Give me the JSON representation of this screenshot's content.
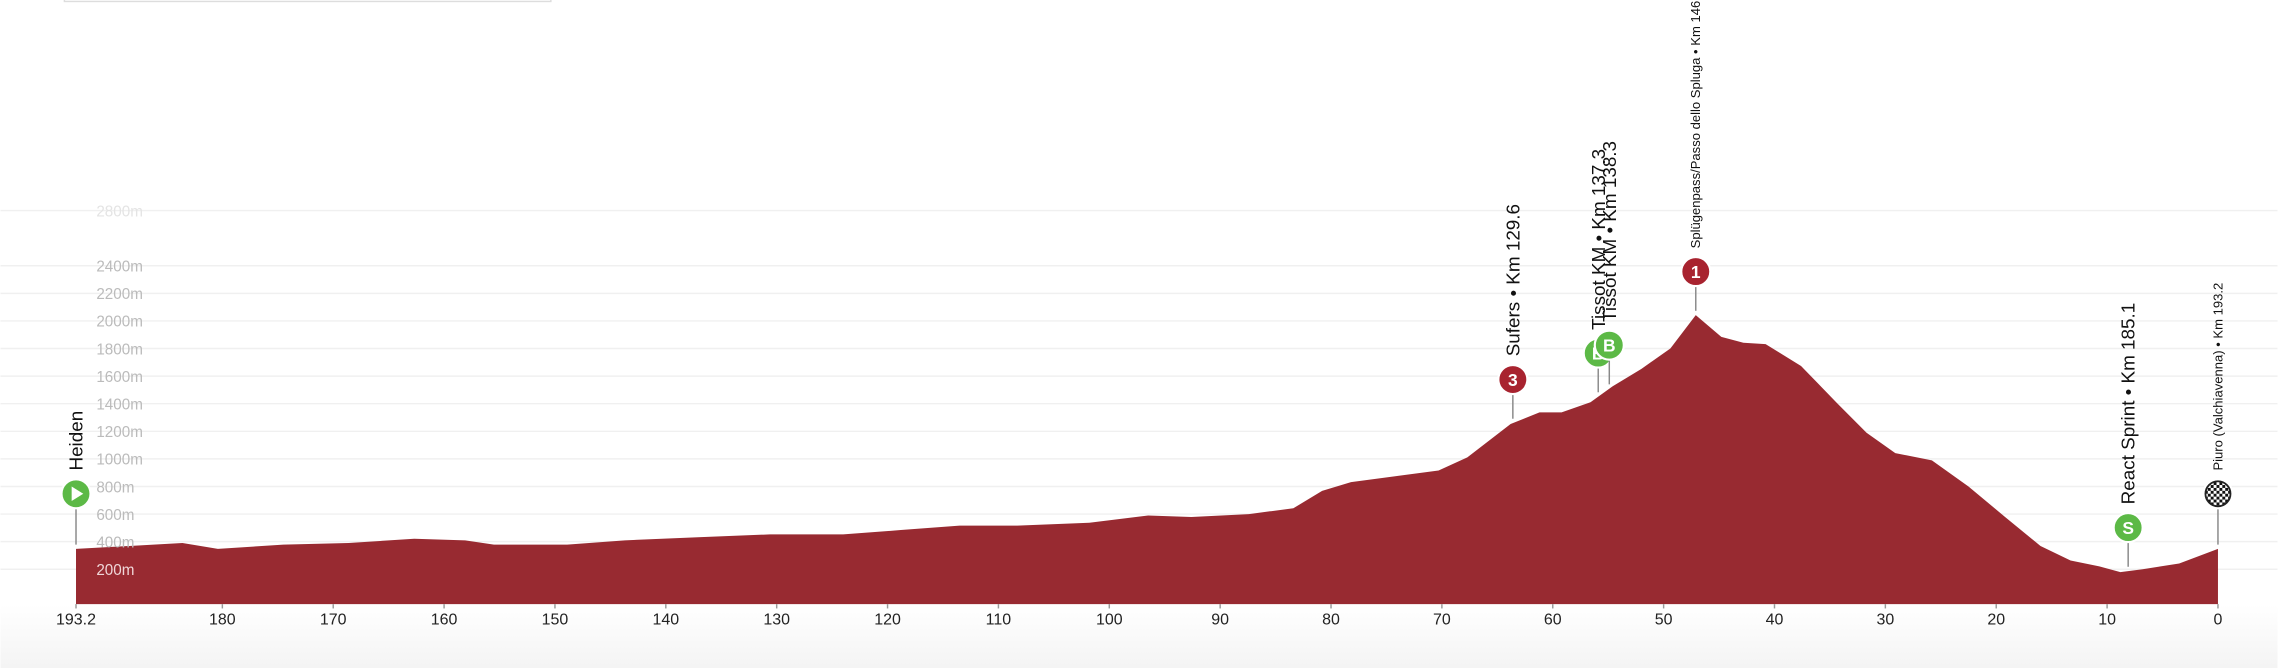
{
  "chart_data": {
    "type": "area",
    "color": "#982a31",
    "grid": true,
    "x": [
      193.2,
      183.6,
      180.4,
      174.5,
      168.6,
      162.7,
      158.1,
      155.5,
      148.9,
      143.7,
      137.1,
      130.6,
      124.0,
      118.8,
      113.5,
      108.3,
      101.8,
      96.5,
      92.6,
      87.4,
      83.4,
      80.8,
      78.2,
      74.3,
      70.3,
      67.7,
      63.8,
      61.2,
      59.2,
      56.6,
      54.6,
      52.0,
      49.4,
      47.1,
      44.8,
      42.8,
      40.8,
      37.6,
      34.3,
      31.7,
      29.1,
      25.8,
      22.5,
      19.2,
      16.0,
      13.3,
      10.7,
      8.8,
      6.8,
      3.5,
      0
    ],
    "values": [
      347,
      390,
      347,
      379,
      390,
      421,
      410,
      379,
      379,
      410,
      432,
      453,
      453,
      484,
      516,
      516,
      537,
      589,
      579,
      600,
      642,
      768,
      832,
      874,
      916,
      1011,
      1253,
      1337,
      1337,
      1411,
      1526,
      1653,
      1800,
      2042,
      1884,
      1842,
      1832,
      1674,
      1400,
      1189,
      1042,
      989,
      800,
      579,
      368,
      263,
      221,
      179,
      200,
      242,
      347
    ],
    "xlim": [
      193.2,
      0
    ],
    "xticks": [
      193.2,
      180,
      170,
      160,
      150,
      140,
      130,
      120,
      110,
      100,
      90,
      80,
      70,
      60,
      50,
      40,
      30,
      20,
      10,
      0
    ],
    "ylim": [
      0,
      4300
    ],
    "yticks": [
      {
        "value": 200,
        "label": "200m"
      },
      {
        "value": 400,
        "label": "400m"
      },
      {
        "value": 600,
        "label": "600m"
      },
      {
        "value": 800,
        "label": "800m"
      },
      {
        "value": 1000,
        "label": "1000m"
      },
      {
        "value": 1200,
        "label": "1200m"
      },
      {
        "value": 1400,
        "label": "1400m"
      },
      {
        "value": 1600,
        "label": "1600m"
      },
      {
        "value": 1800,
        "label": "1800m"
      },
      {
        "value": 2000,
        "label": "2000m"
      },
      {
        "value": 2200,
        "label": "2200m"
      },
      {
        "value": 2400,
        "label": "2400m"
      },
      {
        "value": 2800,
        "label": "2800m"
      }
    ],
    "markers": [
      {
        "x": 193.2,
        "label": "Heiden",
        "symbol": "play",
        "color": "#5cb946"
      },
      {
        "x": 63.6,
        "label": "Sufers • Km 129.6",
        "icon": "3",
        "color": "#a8232f"
      },
      {
        "x": 55.9,
        "label": "Tissot KM • Km 137.3",
        "icon": "B",
        "color": "#5cb946"
      },
      {
        "x": 54.9,
        "label": "Tissot KM • Km 138.3",
        "icon": "B",
        "color": "#5cb946"
      },
      {
        "x": 47.1,
        "label": "Splügenpass/Passo dello Spluga • Km 146",
        "icon": "1",
        "color": "#a8232f"
      },
      {
        "x": 8.1,
        "label": "React Sprint • Km 185.1",
        "icon": "S",
        "color": "#5cb946"
      },
      {
        "x": 0,
        "label": "Piuro (Valchiavenna) • Km 193.2",
        "symbol": "flag",
        "color": "#222222"
      }
    ]
  }
}
